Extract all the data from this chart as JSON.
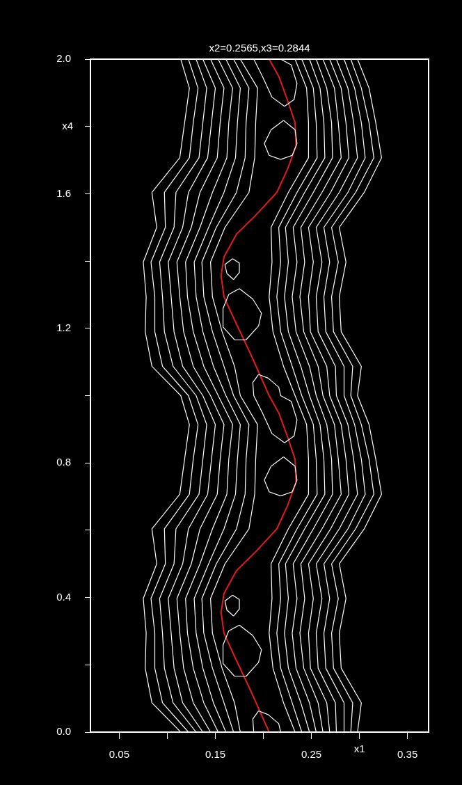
{
  "chart_data": {
    "type": "line",
    "title": "x2=0.2565,x3=0.2844",
    "xlabel": "x1",
    "ylabel": "x4",
    "xlim": [
      0.02,
      0.372
    ],
    "ylim": [
      0,
      2
    ],
    "xticks": [
      0.05,
      {
        "value": 0.1,
        "label": null
      },
      0.15,
      {
        "value": 0.2,
        "label": null
      },
      0.25,
      {
        "value": 0.3,
        "label": null
      },
      0.35
    ],
    "yticks": [
      {
        "value": 0,
        "label": "0.0"
      },
      {
        "value": 0.2,
        "label": null
      },
      {
        "value": 0.4,
        "label": "0.4"
      },
      {
        "value": 0.6,
        "label": null
      },
      {
        "value": 0.8,
        "label": "0.8"
      },
      {
        "value": 1.0,
        "label": null
      },
      {
        "value": 1.2,
        "label": "1.2"
      },
      {
        "value": 1.4,
        "label": null
      },
      {
        "value": 1.6,
        "label": "1.6"
      },
      {
        "value": 1.8,
        "label": null
      },
      {
        "value": 2.0,
        "label": "2.0"
      }
    ],
    "series": [
      {
        "color": "#ffffff",
        "x": [
          0.114,
          0.084,
          0.077,
          0.078,
          0.075,
          0.089,
          0.084,
          0.113,
          0.118,
          0.123,
          0.114,
          0.084,
          0.077,
          0.078,
          0.075,
          0.089,
          0.084,
          0.113,
          0.118,
          0.123,
          0.114
        ],
        "values": [
          0,
          0.087,
          0.19,
          0.294,
          0.397,
          0.5,
          0.604,
          0.707,
          0.811,
          0.914,
          1,
          1.087,
          1.19,
          1.294,
          1.397,
          1.5,
          1.604,
          1.707,
          1.811,
          1.914,
          2
        ]
      },
      {
        "color": "#ffffff",
        "x": [
          0.122,
          0.095,
          0.087,
          0.087,
          0.083,
          0.098,
          0.097,
          0.123,
          0.127,
          0.132,
          0.122,
          0.095,
          0.087,
          0.087,
          0.083,
          0.098,
          0.097,
          0.123,
          0.127,
          0.132,
          0.122
        ],
        "values": [
          0,
          0.087,
          0.19,
          0.294,
          0.397,
          0.5,
          0.604,
          0.707,
          0.811,
          0.914,
          1,
          1.087,
          1.19,
          1.294,
          1.397,
          1.5,
          1.604,
          1.707,
          1.811,
          1.914,
          2
        ]
      },
      {
        "color": "#ffffff",
        "x": [
          0.13,
          0.106,
          0.097,
          0.095,
          0.092,
          0.107,
          0.109,
          0.133,
          0.137,
          0.141,
          0.13,
          0.106,
          0.097,
          0.095,
          0.092,
          0.107,
          0.109,
          0.133,
          0.137,
          0.141,
          0.13
        ],
        "values": [
          0,
          0.087,
          0.19,
          0.294,
          0.397,
          0.5,
          0.604,
          0.707,
          0.811,
          0.914,
          1,
          1.087,
          1.19,
          1.294,
          1.397,
          1.5,
          1.604,
          1.707,
          1.811,
          1.914,
          2
        ]
      },
      {
        "color": "#ffffff",
        "x": [
          0.137,
          0.116,
          0.107,
          0.104,
          0.101,
          0.116,
          0.122,
          0.142,
          0.146,
          0.15,
          0.137,
          0.116,
          0.107,
          0.104,
          0.101,
          0.116,
          0.122,
          0.142,
          0.146,
          0.15,
          0.137
        ],
        "values": [
          0,
          0.087,
          0.19,
          0.294,
          0.397,
          0.5,
          0.604,
          0.707,
          0.811,
          0.914,
          1,
          1.087,
          1.19,
          1.294,
          1.397,
          1.5,
          1.604,
          1.707,
          1.811,
          1.914,
          2
        ]
      },
      {
        "color": "#ffffff",
        "x": [
          0.145,
          0.127,
          0.117,
          0.113,
          0.11,
          0.125,
          0.134,
          0.152,
          0.155,
          0.159,
          0.145,
          0.127,
          0.117,
          0.113,
          0.11,
          0.125,
          0.134,
          0.152,
          0.155,
          0.159,
          0.145
        ],
        "values": [
          0,
          0.087,
          0.19,
          0.294,
          0.397,
          0.5,
          0.604,
          0.707,
          0.811,
          0.914,
          1,
          1.087,
          1.19,
          1.294,
          1.397,
          1.5,
          1.604,
          1.707,
          1.811,
          1.914,
          2
        ]
      },
      {
        "color": "#ffffff",
        "x": [
          0.153,
          0.138,
          0.127,
          0.121,
          0.119,
          0.134,
          0.147,
          0.162,
          0.164,
          0.168,
          0.153,
          0.138,
          0.127,
          0.121,
          0.119,
          0.134,
          0.147,
          0.162,
          0.164,
          0.168,
          0.153
        ],
        "values": [
          0,
          0.087,
          0.19,
          0.294,
          0.397,
          0.5,
          0.604,
          0.707,
          0.811,
          0.914,
          1,
          1.087,
          1.19,
          1.294,
          1.397,
          1.5,
          1.604,
          1.707,
          1.811,
          1.914,
          2
        ]
      },
      {
        "color": "#ffffff",
        "x": [
          0.161,
          0.148,
          0.137,
          0.13,
          0.128,
          0.143,
          0.159,
          0.171,
          0.173,
          0.176,
          0.161,
          0.148,
          0.137,
          0.13,
          0.128,
          0.143,
          0.159,
          0.171,
          0.173,
          0.176,
          0.161
        ],
        "values": [
          0,
          0.087,
          0.19,
          0.294,
          0.397,
          0.5,
          0.604,
          0.707,
          0.811,
          0.914,
          1,
          1.087,
          1.19,
          1.294,
          1.397,
          1.5,
          1.604,
          1.707,
          1.811,
          1.914,
          2
        ]
      },
      {
        "color": "#ffffff",
        "x": [
          0.169,
          0.159,
          0.147,
          0.138,
          0.136,
          0.151,
          0.172,
          0.181,
          0.182,
          0.185,
          0.169,
          0.159,
          0.147,
          0.138,
          0.136,
          0.151,
          0.172,
          0.181,
          0.182,
          0.185,
          0.169
        ],
        "values": [
          0,
          0.087,
          0.19,
          0.294,
          0.397,
          0.5,
          0.604,
          0.707,
          0.811,
          0.914,
          1,
          1.087,
          1.19,
          1.294,
          1.397,
          1.5,
          1.604,
          1.707,
          1.811,
          1.914,
          2
        ]
      },
      {
        "color": "#ffffff",
        "x": [
          0.176,
          0.17,
          0.157,
          0.147,
          0.145,
          0.16,
          0.185,
          0.191,
          0.192,
          0.194,
          0.176,
          0.17,
          0.157,
          0.147,
          0.145,
          0.16,
          0.185,
          0.191,
          0.192,
          0.194,
          0.176
        ],
        "values": [
          0,
          0.087,
          0.19,
          0.294,
          0.397,
          0.5,
          0.604,
          0.707,
          0.811,
          0.914,
          1,
          1.087,
          1.19,
          1.294,
          1.397,
          1.5,
          1.604,
          1.707,
          1.811,
          1.914,
          2
        ]
      },
      {
        "color": "#ffffff",
        "x": [
          0.233,
          0.221,
          0.21,
          0.206,
          0.209,
          0.208,
          0.226,
          0.247,
          0.247,
          0.245,
          0.233,
          0.221,
          0.21,
          0.206,
          0.209,
          0.208,
          0.226,
          0.247,
          0.247,
          0.245,
          0.233
        ],
        "values": [
          0,
          0.087,
          0.19,
          0.294,
          0.397,
          0.5,
          0.604,
          0.707,
          0.811,
          0.914,
          1,
          1.087,
          1.19,
          1.294,
          1.397,
          1.5,
          1.604,
          1.707,
          1.811,
          1.914,
          2
        ]
      },
      {
        "color": "#ffffff",
        "x": [
          0.24,
          0.23,
          0.218,
          0.214,
          0.218,
          0.216,
          0.235,
          0.256,
          0.255,
          0.252,
          0.24,
          0.23,
          0.218,
          0.214,
          0.218,
          0.216,
          0.235,
          0.256,
          0.255,
          0.252,
          0.24
        ],
        "values": [
          0,
          0.087,
          0.19,
          0.294,
          0.397,
          0.5,
          0.604,
          0.707,
          0.811,
          0.914,
          1,
          1.087,
          1.19,
          1.294,
          1.397,
          1.5,
          1.604,
          1.707,
          1.811,
          1.914,
          2
        ]
      },
      {
        "color": "#ffffff",
        "x": [
          0.248,
          0.239,
          0.226,
          0.222,
          0.226,
          0.223,
          0.243,
          0.264,
          0.263,
          0.259,
          0.248,
          0.239,
          0.226,
          0.222,
          0.226,
          0.223,
          0.243,
          0.264,
          0.263,
          0.259,
          0.248
        ],
        "values": [
          0,
          0.087,
          0.19,
          0.294,
          0.397,
          0.5,
          0.604,
          0.707,
          0.811,
          0.914,
          1,
          1.087,
          1.19,
          1.294,
          1.397,
          1.5,
          1.604,
          1.707,
          1.811,
          1.914,
          2
        ]
      },
      {
        "color": "#ffffff",
        "x": [
          0.255,
          0.248,
          0.234,
          0.23,
          0.235,
          0.231,
          0.252,
          0.272,
          0.271,
          0.266,
          0.255,
          0.248,
          0.234,
          0.23,
          0.235,
          0.231,
          0.252,
          0.272,
          0.271,
          0.266,
          0.255
        ],
        "values": [
          0,
          0.087,
          0.19,
          0.294,
          0.397,
          0.5,
          0.604,
          0.707,
          0.811,
          0.914,
          1,
          1.087,
          1.19,
          1.294,
          1.397,
          1.5,
          1.604,
          1.707,
          1.811,
          1.914,
          2
        ]
      },
      {
        "color": "#ffffff",
        "x": [
          0.262,
          0.257,
          0.242,
          0.238,
          0.243,
          0.239,
          0.261,
          0.281,
          0.278,
          0.274,
          0.262,
          0.257,
          0.242,
          0.238,
          0.243,
          0.239,
          0.261,
          0.281,
          0.278,
          0.274,
          0.262
        ],
        "values": [
          0,
          0.087,
          0.19,
          0.294,
          0.397,
          0.5,
          0.604,
          0.707,
          0.811,
          0.914,
          1,
          1.087,
          1.19,
          1.294,
          1.397,
          1.5,
          1.604,
          1.707,
          1.811,
          1.914,
          2
        ]
      },
      {
        "color": "#ffffff",
        "x": [
          0.269,
          0.266,
          0.249,
          0.247,
          0.252,
          0.247,
          0.27,
          0.289,
          0.286,
          0.281,
          0.269,
          0.266,
          0.249,
          0.247,
          0.252,
          0.247,
          0.27,
          0.289,
          0.286,
          0.281,
          0.269
        ],
        "values": [
          0,
          0.087,
          0.19,
          0.294,
          0.397,
          0.5,
          0.604,
          0.707,
          0.811,
          0.914,
          1,
          1.087,
          1.19,
          1.294,
          1.397,
          1.5,
          1.604,
          1.707,
          1.811,
          1.914,
          2
        ]
      },
      {
        "color": "#ffffff",
        "x": [
          0.276,
          0.275,
          0.257,
          0.255,
          0.261,
          0.255,
          0.279,
          0.298,
          0.294,
          0.288,
          0.276,
          0.275,
          0.257,
          0.255,
          0.261,
          0.255,
          0.279,
          0.298,
          0.294,
          0.288,
          0.276
        ],
        "values": [
          0,
          0.087,
          0.19,
          0.294,
          0.397,
          0.5,
          0.604,
          0.707,
          0.811,
          0.914,
          1,
          1.087,
          1.19,
          1.294,
          1.397,
          1.5,
          1.604,
          1.707,
          1.811,
          1.914,
          2
        ]
      },
      {
        "color": "#ffffff",
        "x": [
          0.284,
          0.284,
          0.265,
          0.263,
          0.269,
          0.263,
          0.288,
          0.306,
          0.302,
          0.295,
          0.284,
          0.284,
          0.265,
          0.263,
          0.269,
          0.263,
          0.288,
          0.306,
          0.302,
          0.295,
          0.284
        ],
        "values": [
          0,
          0.087,
          0.19,
          0.294,
          0.397,
          0.5,
          0.604,
          0.707,
          0.811,
          0.914,
          1,
          1.087,
          1.19,
          1.294,
          1.397,
          1.5,
          1.604,
          1.707,
          1.811,
          1.914,
          2
        ]
      },
      {
        "color": "#ffffff",
        "x": [
          0.291,
          0.293,
          0.273,
          0.271,
          0.278,
          0.271,
          0.296,
          0.315,
          0.31,
          0.302,
          0.291,
          0.293,
          0.273,
          0.271,
          0.278,
          0.271,
          0.296,
          0.315,
          0.31,
          0.302,
          0.291
        ],
        "values": [
          0,
          0.087,
          0.19,
          0.294,
          0.397,
          0.5,
          0.604,
          0.707,
          0.811,
          0.914,
          1,
          1.087,
          1.19,
          1.294,
          1.397,
          1.5,
          1.604,
          1.707,
          1.811,
          1.914,
          2
        ]
      },
      {
        "color": "#ffffff",
        "x": [
          0.298,
          0.302,
          0.281,
          0.279,
          0.286,
          0.279,
          0.305,
          0.323,
          0.317,
          0.31,
          0.298,
          0.302,
          0.281,
          0.279,
          0.286,
          0.279,
          0.305,
          0.323,
          0.317,
          0.31,
          0.298
        ],
        "values": [
          0,
          0.087,
          0.19,
          0.294,
          0.397,
          0.5,
          0.604,
          0.707,
          0.811,
          0.914,
          1,
          1.087,
          1.19,
          1.294,
          1.397,
          1.5,
          1.604,
          1.707,
          1.811,
          1.914,
          2
        ]
      },
      {
        "color": "#ffffff",
        "x": [
          0.221,
          0.233,
          0.235,
          0.23,
          0.218
        ],
        "values": [
          0.818,
          0.79,
          0.749,
          0.714,
          0.702
        ]
      },
      {
        "color": "#ffffff",
        "x": [
          0.218,
          0.206,
          0.201,
          0.208,
          0.221
        ],
        "values": [
          0.702,
          0.714,
          0.749,
          0.79,
          0.818
        ]
      },
      {
        "color": "#ffffff",
        "x": [
          0.221,
          0.233,
          0.235,
          0.23,
          0.218
        ],
        "values": [
          1.818,
          1.79,
          1.749,
          1.714,
          1.702
        ]
      },
      {
        "color": "#ffffff",
        "x": [
          0.218,
          0.206,
          0.201,
          0.208,
          0.221
        ],
        "values": [
          1.702,
          1.714,
          1.749,
          1.79,
          1.818
        ]
      },
      {
        "color": "#ffffff",
        "x": [
          0.168,
          0.175,
          0.175,
          0.169
        ],
        "values": [
          0.407,
          0.394,
          0.366,
          0.345
        ]
      },
      {
        "color": "#ffffff",
        "x": [
          0.169,
          0.162,
          0.16,
          0.168
        ],
        "values": [
          0.345,
          0.363,
          0.39,
          0.407
        ]
      },
      {
        "color": "#ffffff",
        "x": [
          0.168,
          0.175,
          0.175,
          0.169
        ],
        "values": [
          1.407,
          1.394,
          1.366,
          1.345
        ]
      },
      {
        "color": "#ffffff",
        "x": [
          0.169,
          0.162,
          0.16,
          0.168
        ],
        "values": [
          1.345,
          1.363,
          1.39,
          1.407
        ]
      },
      {
        "color": "#ffffff",
        "x": [
          0.175,
          0.189,
          0.198,
          0.195,
          0.182,
          0.17
        ],
        "values": [
          0.318,
          0.287,
          0.245,
          0.207,
          0.166,
          0.166
        ]
      },
      {
        "color": "#ffffff",
        "x": [
          0.17,
          0.158,
          0.158,
          0.164,
          0.175
        ],
        "values": [
          0.166,
          0.204,
          0.259,
          0.301,
          0.318
        ]
      },
      {
        "color": "#ffffff",
        "x": [
          0.175,
          0.189,
          0.198,
          0.195,
          0.182,
          0.17
        ],
        "values": [
          1.318,
          1.287,
          1.245,
          1.207,
          1.166,
          1.166
        ]
      },
      {
        "color": "#ffffff",
        "x": [
          0.17,
          0.158,
          0.158,
          0.164,
          0.175
        ],
        "values": [
          1.166,
          1.204,
          1.259,
          1.301,
          1.318
        ]
      },
      {
        "color": "#ffffff",
        "x": [
          0.19,
          0.189,
          0.195
        ],
        "values": [
          0,
          0.039,
          0.063
        ]
      },
      {
        "color": "#ffffff",
        "x": [
          0.195,
          0.205,
          0.216,
          0.218
        ],
        "values": [
          0.063,
          0.052,
          0.025,
          0
        ]
      },
      {
        "color": "#ffffff",
        "x": [
          0.222,
          0.232,
          0.235,
          0.229,
          0.218,
          0.216,
          0.205,
          0.195
        ],
        "values": [
          0.86,
          0.88,
          0.928,
          0.983,
          1.0,
          1.025,
          1.052,
          1.063
        ]
      },
      {
        "color": "#ffffff",
        "x": [
          0.195,
          0.189,
          0.19,
          0.199,
          0.209,
          0.222
        ],
        "values": [
          1.063,
          1.039,
          1.0,
          0.949,
          0.887,
          0.86
        ]
      },
      {
        "color": "#ffffff",
        "x": [
          0.218,
          0.229,
          0.235,
          0.232,
          0.222
        ],
        "values": [
          2.0,
          1.983,
          1.928,
          1.88,
          1.86
        ]
      },
      {
        "color": "#ffffff",
        "x": [
          0.222,
          0.209,
          0.199,
          0.19
        ],
        "values": [
          1.86,
          1.887,
          1.949,
          2.0
        ]
      },
      {
        "color": "#e41a1c",
        "x": [
          0.206,
          0.187,
          0.17,
          0.159,
          0.156,
          0.159,
          0.172,
          0.192,
          0.214,
          0.225,
          0.234,
          0.233,
          0.225,
          0.216,
          0.206,
          0.187,
          0.17,
          0.159,
          0.156,
          0.159,
          0.172,
          0.192,
          0.214,
          0.225,
          0.234,
          0.233,
          0.225,
          0.216,
          0.206
        ],
        "values": [
          0,
          0.122,
          0.225,
          0.294,
          0.356,
          0.412,
          0.48,
          0.536,
          0.604,
          0.672,
          0.742,
          0.811,
          0.879,
          0.949,
          1,
          1.122,
          1.225,
          1.294,
          1.356,
          1.412,
          1.48,
          1.536,
          1.604,
          1.672,
          1.742,
          1.811,
          1.879,
          1.949,
          2
        ]
      }
    ]
  }
}
